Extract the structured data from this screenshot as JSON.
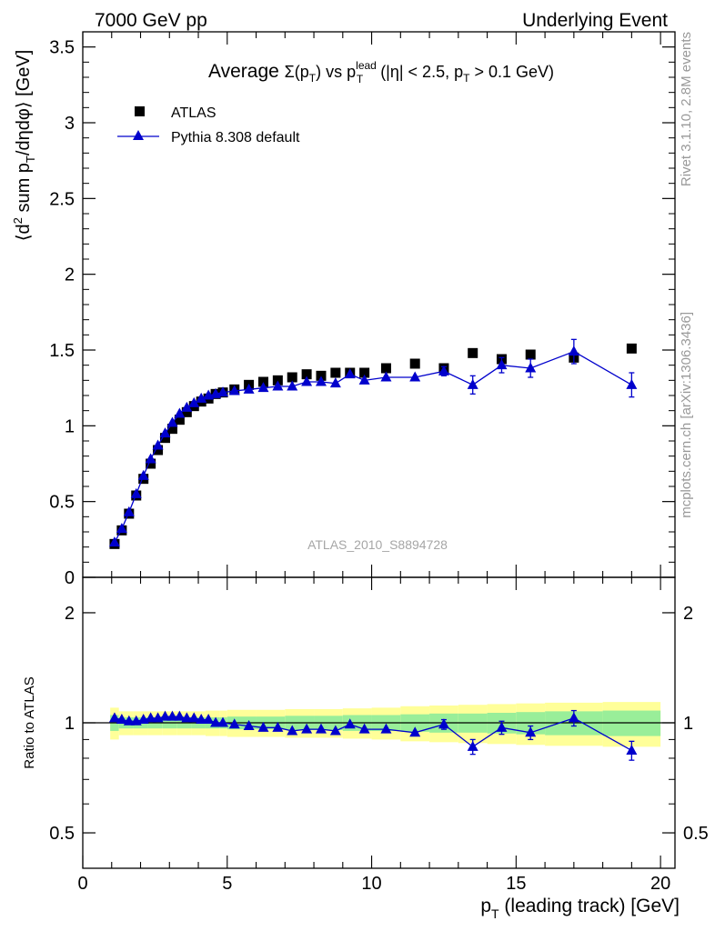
{
  "header": {
    "left": "7000 GeV pp",
    "right": "Underlying Event"
  },
  "side_labels": {
    "rivet": "Rivet 3.1.10,  2.8M events",
    "mcplots": "mcplots.cern.ch [arXiv:1306.3436]"
  },
  "chart_data": [
    {
      "type": "scatter",
      "title": "Average Σ(p_T) vs p_T^lead (|η| < 2.5, p_T > 0.1 GeV)",
      "title_parts": {
        "lead": "Average ",
        "sigma": "Σ(p",
        "t_sub": "T",
        "mid": ") vs p",
        "lead_sup": "lead",
        "t_sub2": "T",
        "cut": " (|η| < 2.5, p",
        "t_sub3": "T",
        "tail": " > 0.1 GeV)"
      },
      "ylabel_parts": {
        "open": "⟨d",
        "sup2": "2",
        "mid": " sum p",
        "t_sub": "T",
        "close": "/dηdφ⟩ [GeV]"
      },
      "xlim": [
        0,
        20.5
      ],
      "ylim": [
        0,
        3.6
      ],
      "yticks": [
        0,
        0.5,
        1,
        1.5,
        2,
        2.5,
        3,
        3.5
      ],
      "ytick_labels": [
        "0",
        "0.5",
        "1",
        "1.5",
        "2",
        "2.5",
        "3",
        "3.5"
      ],
      "watermark": "ATLAS_2010_S8894728",
      "legend": {
        "placement": "top-left",
        "atlas": "ATLAS",
        "mc": "Pythia 8.308 default"
      },
      "series": [
        {
          "name": "ATLAS",
          "marker": "square",
          "color": "#000000",
          "x": [
            1.1,
            1.35,
            1.6,
            1.85,
            2.1,
            2.35,
            2.6,
            2.85,
            3.1,
            3.35,
            3.6,
            3.85,
            4.1,
            4.35,
            4.6,
            4.85,
            5.25,
            5.75,
            6.25,
            6.75,
            7.25,
            7.75,
            8.25,
            8.75,
            9.25,
            9.75,
            10.5,
            11.5,
            12.5,
            13.5,
            14.5,
            15.5,
            17.0,
            19.0
          ],
          "y": [
            0.22,
            0.31,
            0.42,
            0.54,
            0.65,
            0.75,
            0.84,
            0.92,
            0.98,
            1.04,
            1.09,
            1.13,
            1.16,
            1.18,
            1.21,
            1.22,
            1.24,
            1.27,
            1.29,
            1.3,
            1.32,
            1.34,
            1.33,
            1.35,
            1.35,
            1.35,
            1.38,
            1.41,
            1.38,
            1.48,
            1.44,
            1.47,
            1.45,
            1.51
          ]
        },
        {
          "name": "Pythia 8.308 default",
          "marker": "triangle",
          "color": "#0000cc",
          "x": [
            1.1,
            1.35,
            1.6,
            1.85,
            2.1,
            2.35,
            2.6,
            2.85,
            3.1,
            3.35,
            3.6,
            3.85,
            4.1,
            4.35,
            4.6,
            4.85,
            5.25,
            5.75,
            6.25,
            6.75,
            7.25,
            7.75,
            8.25,
            8.75,
            9.25,
            9.75,
            10.5,
            11.5,
            12.5,
            13.5,
            14.5,
            15.5,
            17.0,
            19.0
          ],
          "y": [
            0.23,
            0.32,
            0.43,
            0.55,
            0.67,
            0.78,
            0.87,
            0.95,
            1.02,
            1.08,
            1.12,
            1.15,
            1.18,
            1.2,
            1.21,
            1.22,
            1.23,
            1.24,
            1.25,
            1.26,
            1.26,
            1.29,
            1.29,
            1.28,
            1.34,
            1.3,
            1.32,
            1.32,
            1.36,
            1.27,
            1.4,
            1.38,
            1.49,
            1.27
          ],
          "err": [
            0.0,
            0.0,
            0.0,
            0.0,
            0.0,
            0.0,
            0.0,
            0.0,
            0.0,
            0.0,
            0.0,
            0.0,
            0.0,
            0.0,
            0.0,
            0.0,
            0.0,
            0.0,
            0.0,
            0.0,
            0.0,
            0.0,
            0.0,
            0.0,
            0.0,
            0.0,
            0.0,
            0.0,
            0.03,
            0.06,
            0.05,
            0.06,
            0.08,
            0.08
          ]
        }
      ]
    },
    {
      "type": "scatter",
      "ylabel": "Ratio to ATLAS",
      "xlabel": "p_T (leading track) [GeV]",
      "xlabel_parts": {
        "p": "p",
        "t_sub": "T",
        "rest": " (leading track) [GeV]"
      },
      "scale": "log",
      "xlim": [
        0,
        20.5
      ],
      "ylim": [
        0.4,
        2.5
      ],
      "xticks": [
        0,
        5,
        10,
        15,
        20
      ],
      "xtick_labels": [
        "0",
        "5",
        "10",
        "15",
        "20"
      ],
      "yticks": [
        0.5,
        1,
        2
      ],
      "ytick_labels": [
        "0.5",
        "1",
        "2"
      ],
      "bands": {
        "edges": [
          0.95,
          1.25,
          1.75,
          2.25,
          2.75,
          3.25,
          3.75,
          4.25,
          4.75,
          5.0,
          6.0,
          7.0,
          8.0,
          9.0,
          10.0,
          11.0,
          12.0,
          13.0,
          14.0,
          15.0,
          16.0,
          18.0,
          20.0
        ],
        "green_half": [
          0.05,
          0.035,
          0.035,
          0.035,
          0.035,
          0.035,
          0.035,
          0.035,
          0.035,
          0.04,
          0.04,
          0.045,
          0.045,
          0.05,
          0.05,
          0.055,
          0.06,
          0.06,
          0.065,
          0.07,
          0.075,
          0.08
        ],
        "yellow_half": [
          0.1,
          0.075,
          0.075,
          0.075,
          0.075,
          0.075,
          0.075,
          0.08,
          0.08,
          0.085,
          0.085,
          0.09,
          0.09,
          0.095,
          0.1,
          0.11,
          0.115,
          0.12,
          0.125,
          0.13,
          0.135,
          0.14
        ],
        "green_color": "#99ee99",
        "yellow_color": "#ffff99"
      },
      "series": [
        {
          "name": "Pythia 8.308 default",
          "marker": "triangle",
          "color": "#0000cc",
          "x": [
            1.1,
            1.35,
            1.6,
            1.85,
            2.1,
            2.35,
            2.6,
            2.85,
            3.1,
            3.35,
            3.6,
            3.85,
            4.1,
            4.35,
            4.6,
            4.85,
            5.25,
            5.75,
            6.25,
            6.75,
            7.25,
            7.75,
            8.25,
            8.75,
            9.25,
            9.75,
            10.5,
            11.5,
            12.5,
            13.5,
            14.5,
            15.5,
            17.0,
            19.0
          ],
          "y": [
            1.03,
            1.02,
            1.01,
            1.01,
            1.02,
            1.03,
            1.03,
            1.04,
            1.04,
            1.04,
            1.03,
            1.03,
            1.02,
            1.02,
            1.0,
            1.0,
            0.99,
            0.98,
            0.97,
            0.97,
            0.95,
            0.96,
            0.96,
            0.95,
            0.99,
            0.96,
            0.96,
            0.94,
            0.99,
            0.86,
            0.97,
            0.94,
            1.03,
            0.84
          ],
          "err": [
            0.0,
            0.0,
            0.0,
            0.0,
            0.0,
            0.0,
            0.0,
            0.0,
            0.0,
            0.0,
            0.0,
            0.0,
            0.0,
            0.0,
            0.0,
            0.0,
            0.0,
            0.0,
            0.0,
            0.0,
            0.0,
            0.0,
            0.0,
            0.0,
            0.0,
            0.0,
            0.0,
            0.0,
            0.03,
            0.04,
            0.04,
            0.04,
            0.05,
            0.05
          ]
        }
      ]
    }
  ]
}
